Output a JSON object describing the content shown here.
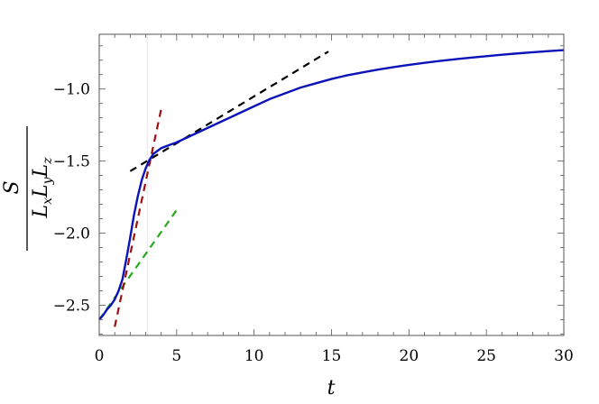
{
  "chart_data": {
    "type": "line",
    "xlabel": "t",
    "ylabel": {
      "numerator": "S",
      "denominator": [
        "L",
        "x",
        "L",
        "y",
        "L",
        "z"
      ]
    },
    "xlim": [
      0,
      30
    ],
    "ylim": [
      -2.71,
      -0.62
    ],
    "x_ticks": [
      0,
      5,
      10,
      15,
      20,
      25,
      30
    ],
    "x_tick_labels": [
      "0",
      "5",
      "10",
      "15",
      "20",
      "25",
      "30"
    ],
    "y_ticks": [
      -2.5,
      -2.0,
      -1.5,
      -1.0
    ],
    "y_tick_labels": [
      "−2.5",
      "−2.0",
      "−1.5",
      "−1.0"
    ],
    "grid": false,
    "vertical_reference_line": 3.1,
    "series": [
      {
        "style": "solid",
        "color": "#0b12b8",
        "x": [
          0,
          0.25,
          0.5,
          0.75,
          1.0,
          1.25,
          1.5,
          1.75,
          2.0,
          2.25,
          2.5,
          2.75,
          3.0,
          3.25,
          3.5,
          3.75,
          4.0,
          4.25,
          4.5,
          5,
          6,
          7,
          8,
          9,
          10,
          11,
          12,
          13,
          14,
          15,
          16,
          17,
          18,
          19,
          20,
          21,
          22,
          23,
          24,
          25,
          26,
          27,
          28,
          29,
          30
        ],
        "y": [
          -2.6,
          -2.57,
          -2.53,
          -2.5,
          -2.46,
          -2.4,
          -2.32,
          -2.18,
          -2.03,
          -1.87,
          -1.74,
          -1.63,
          -1.55,
          -1.49,
          -1.45,
          -1.43,
          -1.41,
          -1.4,
          -1.39,
          -1.37,
          -1.32,
          -1.27,
          -1.22,
          -1.17,
          -1.12,
          -1.07,
          -1.03,
          -0.99,
          -0.96,
          -0.93,
          -0.905,
          -0.885,
          -0.865,
          -0.848,
          -0.832,
          -0.818,
          -0.805,
          -0.793,
          -0.782,
          -0.772,
          -0.762,
          -0.753,
          -0.745,
          -0.737,
          -0.73
        ]
      },
      {
        "style": "dashed",
        "color": "#2aa820",
        "x": [
          0,
          5
        ],
        "y": [
          -2.6,
          -1.84
        ]
      },
      {
        "style": "dashed",
        "color": "#a01010",
        "x": [
          1.0,
          4.0
        ],
        "y": [
          -2.65,
          -1.14
        ]
      },
      {
        "style": "dashed",
        "color": "#000000",
        "x": [
          2.0,
          14.8
        ],
        "y": [
          -1.57,
          -0.74
        ]
      }
    ]
  }
}
